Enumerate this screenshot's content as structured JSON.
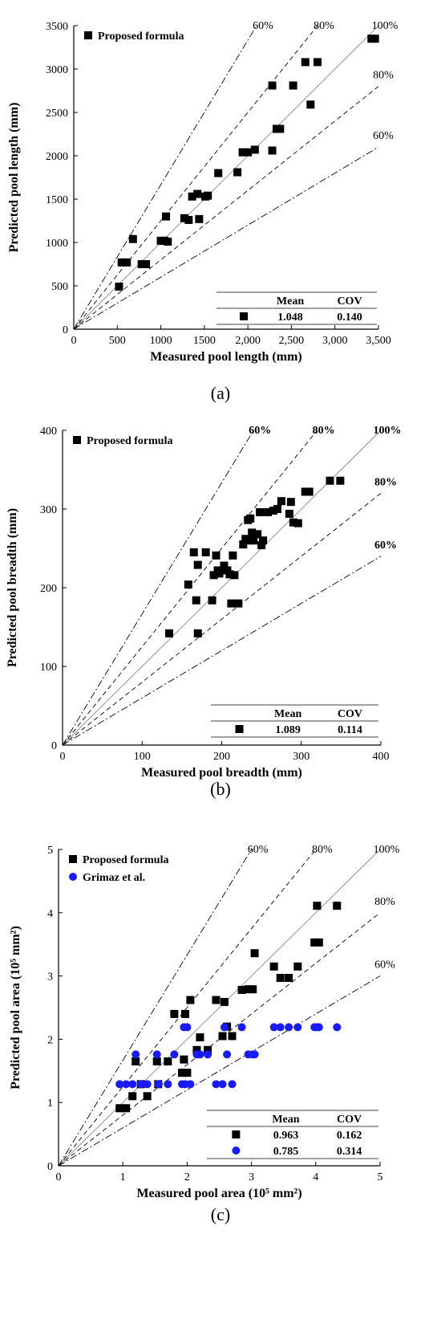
{
  "chart_data": [
    {
      "type": "scatter",
      "panel_label": "(a)",
      "xlabel": "Measured pool length (mm)",
      "ylabel": "Predicted pool length (mm)",
      "xlim": [
        0,
        3500
      ],
      "ylim": [
        0,
        3500
      ],
      "xticks": [
        0,
        500,
        1000,
        1500,
        2000,
        2500,
        3000,
        3500
      ],
      "xtick_labels": [
        "0",
        "500",
        "1000",
        "1500",
        "2,000",
        "2,500",
        "3,000",
        "3,500"
      ],
      "yticks": [
        0,
        500,
        1000,
        1500,
        2000,
        2500,
        3000,
        3500
      ],
      "ytick_labels": [
        "0",
        "500",
        "1000",
        "1500",
        "2000",
        "2500",
        "3000",
        "3500"
      ],
      "ref_lines": [
        {
          "slope": 1.6667,
          "label": "60%",
          "style": "dashdot"
        },
        {
          "slope": 1.25,
          "label": "80%",
          "style": "dash"
        },
        {
          "slope": 1.0,
          "label": "100%",
          "style": "solid"
        },
        {
          "slope": 0.8,
          "label": "80%",
          "style": "dash"
        },
        {
          "slope": 0.6,
          "label": "60%",
          "style": "dashdot"
        }
      ],
      "legend": {
        "placement": "top-left",
        "entries": [
          {
            "label": "Proposed formula",
            "marker": "square",
            "color": "#000000"
          }
        ]
      },
      "stats_table": {
        "headers": [
          "Mean",
          "COV"
        ],
        "rows": [
          {
            "marker": "square",
            "color": "#000000",
            "mean": "1.048",
            "cov": "0.140"
          }
        ]
      },
      "series": [
        {
          "name": "Proposed formula",
          "marker": "square",
          "color": "#000000",
          "points": [
            [
              520,
              490
            ],
            [
              550,
              770
            ],
            [
              610,
              770
            ],
            [
              680,
              1040
            ],
            [
              780,
              750
            ],
            [
              830,
              750
            ],
            [
              1000,
              1020
            ],
            [
              1040,
              1020
            ],
            [
              1060,
              1300
            ],
            [
              1080,
              1010
            ],
            [
              1270,
              1280
            ],
            [
              1320,
              1260
            ],
            [
              1360,
              1530
            ],
            [
              1420,
              1560
            ],
            [
              1440,
              1270
            ],
            [
              1510,
              1530
            ],
            [
              1540,
              1540
            ],
            [
              1660,
              1800
            ],
            [
              1880,
              1810
            ],
            [
              1940,
              2040
            ],
            [
              2000,
              2040
            ],
            [
              2080,
              2070
            ],
            [
              2280,
              2060
            ],
            [
              2280,
              2810
            ],
            [
              2330,
              2310
            ],
            [
              2370,
              2310
            ],
            [
              2520,
              2810
            ],
            [
              2660,
              3080
            ],
            [
              2720,
              2590
            ],
            [
              2800,
              3080
            ],
            [
              3420,
              3350
            ],
            [
              3460,
              3350
            ]
          ]
        }
      ]
    },
    {
      "type": "scatter",
      "panel_label": "(b)",
      "xlabel": "Measured pool breadth (mm)",
      "ylabel": "Predicted pool breadth (mm)",
      "xlim": [
        0,
        400
      ],
      "ylim": [
        0,
        400
      ],
      "xticks": [
        0,
        100,
        200,
        300,
        400
      ],
      "xtick_labels": [
        "0",
        "100",
        "200",
        "300",
        "400"
      ],
      "yticks": [
        0,
        100,
        200,
        300,
        400
      ],
      "ytick_labels": [
        "0",
        "100",
        "200",
        "300",
        "400"
      ],
      "ref_lines": [
        {
          "slope": 1.6667,
          "label": "60%",
          "style": "dashdot"
        },
        {
          "slope": 1.25,
          "label": "80%",
          "style": "dash"
        },
        {
          "slope": 1.0,
          "label": "100%",
          "style": "solid"
        },
        {
          "slope": 0.8,
          "label": "80%",
          "style": "dash"
        },
        {
          "slope": 0.6,
          "label": "60%",
          "style": "dashdot"
        }
      ],
      "legend": {
        "placement": "top-left",
        "entries": [
          {
            "label": "Proposed formula",
            "marker": "square",
            "color": "#000000"
          }
        ]
      },
      "stats_table": {
        "headers": [
          "Mean",
          "COV"
        ],
        "rows": [
          {
            "marker": "square",
            "color": "#000000",
            "mean": "1.089",
            "cov": "0.114"
          }
        ]
      },
      "series": [
        {
          "name": "Proposed formula",
          "marker": "square",
          "color": "#000000",
          "points": [
            [
              134,
              142
            ],
            [
              158,
              204
            ],
            [
              165,
              245
            ],
            [
              168,
              184
            ],
            [
              170,
              229
            ],
            [
              170,
              142
            ],
            [
              180,
              245
            ],
            [
              188,
              184
            ],
            [
              190,
              216
            ],
            [
              193,
              241
            ],
            [
              195,
              222
            ],
            [
              197,
              218
            ],
            [
              203,
              228
            ],
            [
              207,
              222
            ],
            [
              210,
              217
            ],
            [
              212,
              180
            ],
            [
              214,
              241
            ],
            [
              216,
              216
            ],
            [
              221,
              180
            ],
            [
              227,
              255
            ],
            [
              230,
              262
            ],
            [
              232,
              260
            ],
            [
              233,
              286
            ],
            [
              236,
              288
            ],
            [
              238,
              270
            ],
            [
              240,
              260
            ],
            [
              245,
              268
            ],
            [
              248,
              296
            ],
            [
              250,
              254
            ],
            [
              252,
              260
            ],
            [
              258,
              296
            ],
            [
              265,
              298
            ],
            [
              270,
              300
            ],
            [
              275,
              310
            ],
            [
              285,
              294
            ],
            [
              287,
              309
            ],
            [
              290,
              283
            ],
            [
              296,
              282
            ],
            [
              305,
              322
            ],
            [
              310,
              322
            ],
            [
              336,
              336
            ],
            [
              349,
              336
            ]
          ]
        }
      ]
    },
    {
      "type": "scatter",
      "panel_label": "(c)",
      "xlabel": "Measured pool area (10⁵ mm²)",
      "ylabel": "Predicted pool area (10⁵ mm²)",
      "xlim": [
        0,
        5
      ],
      "ylim": [
        0,
        5
      ],
      "xticks": [
        0,
        1,
        2,
        3,
        4,
        5
      ],
      "xtick_labels": [
        "0",
        "1",
        "2",
        "3",
        "4",
        "5"
      ],
      "yticks": [
        0,
        1,
        2,
        3,
        4,
        5
      ],
      "ytick_labels": [
        "0",
        "1",
        "2",
        "3",
        "4",
        "5"
      ],
      "ref_lines": [
        {
          "slope": 1.6667,
          "label": "60%",
          "style": "dashdot"
        },
        {
          "slope": 1.25,
          "label": "80%",
          "style": "dash"
        },
        {
          "slope": 1.0,
          "label": "100%",
          "style": "solid"
        },
        {
          "slope": 0.8,
          "label": "80%",
          "style": "dash"
        },
        {
          "slope": 0.6,
          "label": "60%",
          "style": "dashdot"
        }
      ],
      "legend": {
        "placement": "top-left",
        "entries": [
          {
            "label": "Proposed formula",
            "marker": "square",
            "color": "#000000"
          },
          {
            "label": "Grimaz et al.",
            "marker": "circle",
            "color": "#1a1aff"
          }
        ]
      },
      "stats_table": {
        "headers": [
          "Mean",
          "COV"
        ],
        "rows": [
          {
            "marker": "square",
            "color": "#000000",
            "mean": "0.963",
            "cov": "0.162"
          },
          {
            "marker": "circle",
            "color": "#1a1aff",
            "mean": "0.785",
            "cov": "0.314"
          }
        ]
      },
      "series": [
        {
          "name": "Proposed formula",
          "marker": "square",
          "color": "#000000",
          "points": [
            [
              0.95,
              0.91
            ],
            [
              1.05,
              0.91
            ],
            [
              1.15,
              1.1
            ],
            [
              1.2,
              1.65
            ],
            [
              1.28,
              1.29
            ],
            [
              1.38,
              1.1
            ],
            [
              1.53,
              1.65
            ],
            [
              1.55,
              1.29
            ],
            [
              1.7,
              1.65
            ],
            [
              1.8,
              2.4
            ],
            [
              1.92,
              1.47
            ],
            [
              1.95,
              1.68
            ],
            [
              1.97,
              2.4
            ],
            [
              2.0,
              1.47
            ],
            [
              2.05,
              2.62
            ],
            [
              2.15,
              1.83
            ],
            [
              2.2,
              2.03
            ],
            [
              2.32,
              1.83
            ],
            [
              2.45,
              2.62
            ],
            [
              2.55,
              2.05
            ],
            [
              2.58,
              2.59
            ],
            [
              2.62,
              2.2
            ],
            [
              2.7,
              2.05
            ],
            [
              2.85,
              2.78
            ],
            [
              2.95,
              2.79
            ],
            [
              3.02,
              2.79
            ],
            [
              3.05,
              3.36
            ],
            [
              3.35,
              3.15
            ],
            [
              3.45,
              2.97
            ],
            [
              3.58,
              2.97
            ],
            [
              3.72,
              3.15
            ],
            [
              3.98,
              3.53
            ],
            [
              4.02,
              4.11
            ],
            [
              4.05,
              3.53
            ],
            [
              4.33,
              4.11
            ]
          ]
        },
        {
          "name": "Grimaz et al.",
          "marker": "circle",
          "color": "#1a1aff",
          "points": [
            [
              0.95,
              1.29
            ],
            [
              1.05,
              1.29
            ],
            [
              1.15,
              1.29
            ],
            [
              1.2,
              1.76
            ],
            [
              1.28,
              1.29
            ],
            [
              1.38,
              1.29
            ],
            [
              1.53,
              1.76
            ],
            [
              1.55,
              1.29
            ],
            [
              1.7,
              1.29
            ],
            [
              1.8,
              1.76
            ],
            [
              1.92,
              1.29
            ],
            [
              1.95,
              2.19
            ],
            [
              1.97,
              1.29
            ],
            [
              2.0,
              2.19
            ],
            [
              2.05,
              1.29
            ],
            [
              2.15,
              1.76
            ],
            [
              2.2,
              1.76
            ],
            [
              2.32,
              1.76
            ],
            [
              2.45,
              1.29
            ],
            [
              2.55,
              1.29
            ],
            [
              2.58,
              2.19
            ],
            [
              2.62,
              1.76
            ],
            [
              2.7,
              1.29
            ],
            [
              2.85,
              2.19
            ],
            [
              2.95,
              1.76
            ],
            [
              3.02,
              1.76
            ],
            [
              3.05,
              1.76
            ],
            [
              3.35,
              2.19
            ],
            [
              3.45,
              2.19
            ],
            [
              3.58,
              2.19
            ],
            [
              3.72,
              2.19
            ],
            [
              3.98,
              2.19
            ],
            [
              4.02,
              2.19
            ],
            [
              4.05,
              2.19
            ],
            [
              4.33,
              2.19
            ]
          ]
        }
      ]
    }
  ]
}
